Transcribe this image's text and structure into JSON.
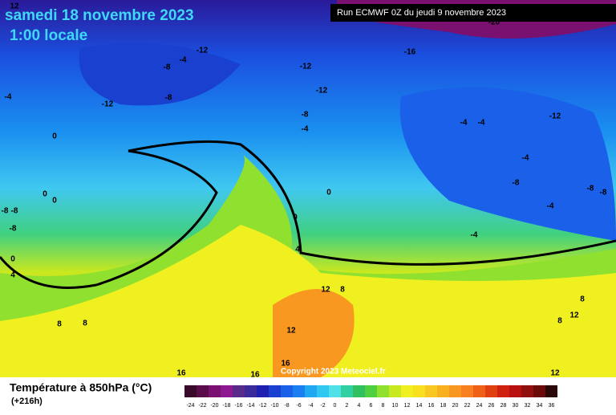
{
  "header": {
    "date": "samedi 18 novembre 2023",
    "time": "1:00 locale",
    "run": "Run ECMWF 0Z du jeudi 9 novembre 2023"
  },
  "copyright": "Copyright 2023 Meteociel.fr",
  "legend": {
    "title": "Température à 850hPa (°C)",
    "lead": "(+216h)",
    "values": [
      -24,
      -22,
      -20,
      -18,
      -16,
      -14,
      -12,
      -10,
      -8,
      -6,
      -4,
      -2,
      0,
      2,
      4,
      6,
      8,
      10,
      12,
      14,
      16,
      18,
      20,
      22,
      24,
      26,
      28,
      30,
      32,
      34,
      36
    ],
    "colors": [
      "#3a0a2a",
      "#5a0c4a",
      "#7a1070",
      "#8e1890",
      "#5a2a8a",
      "#3a2a9a",
      "#2020b0",
      "#1a40d0",
      "#1a60e8",
      "#1a80f0",
      "#20a8f0",
      "#30c8f0",
      "#50e0e8",
      "#30d0a0",
      "#30c060",
      "#50d040",
      "#90e030",
      "#c8e820",
      "#f0f020",
      "#f8e020",
      "#f8c820",
      "#f8b020",
      "#f89820",
      "#f88020",
      "#f06018",
      "#e04010",
      "#d02010",
      "#b81010",
      "#901010",
      "#6a0a0a",
      "#2a0808"
    ]
  },
  "contour_labels": [
    12,
    -20,
    -12,
    -4,
    -8,
    -16,
    -12,
    -12,
    -8,
    -4,
    -12,
    -8,
    -4,
    -4,
    -4,
    -12,
    0,
    -4,
    0,
    0,
    0,
    -8,
    -8,
    -8,
    -4,
    -8,
    -8,
    -8,
    0,
    -4,
    4,
    0,
    4,
    12,
    8,
    8,
    12,
    8,
    8,
    8,
    12,
    16,
    16,
    16,
    12
  ]
}
